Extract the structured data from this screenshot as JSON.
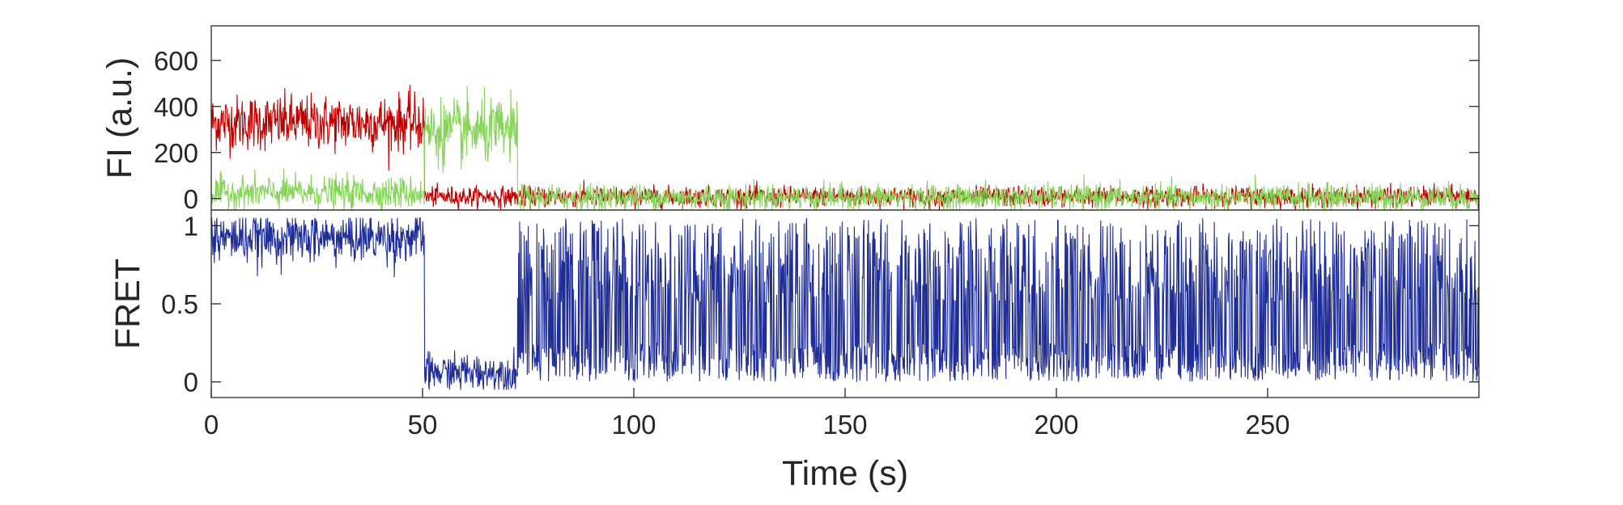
{
  "chart_data": [
    {
      "type": "line",
      "title": "",
      "xlabel": "",
      "ylabel": "FI (a.u.)",
      "xlim": [
        0,
        300
      ],
      "ylim": [
        -50,
        750
      ],
      "yticks": [
        0,
        200,
        400,
        600
      ],
      "grid": false,
      "series": [
        {
          "color": "#c00000",
          "segments": [
            {
              "x": [
                0,
                50.5
              ],
              "mean": 330,
              "noise": 60
            },
            {
              "x": [
                50.5,
                300
              ],
              "mean": 8,
              "noise": 22
            }
          ]
        },
        {
          "color": "#88d45a",
          "segments": [
            {
              "x": [
                0,
                50.5
              ],
              "mean": 25,
              "noise": 35
            },
            {
              "x": [
                50.5,
                72.5
              ],
              "mean": 290,
              "noise": 70
            },
            {
              "x": [
                72.5,
                300
              ],
              "mean": 5,
              "noise": 28
            }
          ]
        }
      ]
    },
    {
      "type": "line",
      "title": "",
      "xlabel": "Time (s)",
      "ylabel": "FRET",
      "xlim": [
        0,
        300
      ],
      "ylim": [
        -0.1,
        1.1
      ],
      "xticks": [
        0,
        50,
        100,
        150,
        200,
        250
      ],
      "yticks": [
        0,
        0.5,
        1
      ],
      "grid": false,
      "series": [
        {
          "color": "#1f2d96",
          "segments": [
            {
              "x": [
                0,
                50.5
              ],
              "mean": 0.92,
              "noise": 0.08
            },
            {
              "x": [
                50.5,
                72.5
              ],
              "mean": 0.06,
              "noise": 0.06
            },
            {
              "x": [
                72.5,
                300
              ],
              "mean": 0.45,
              "noise": 0.45
            }
          ]
        }
      ]
    }
  ]
}
